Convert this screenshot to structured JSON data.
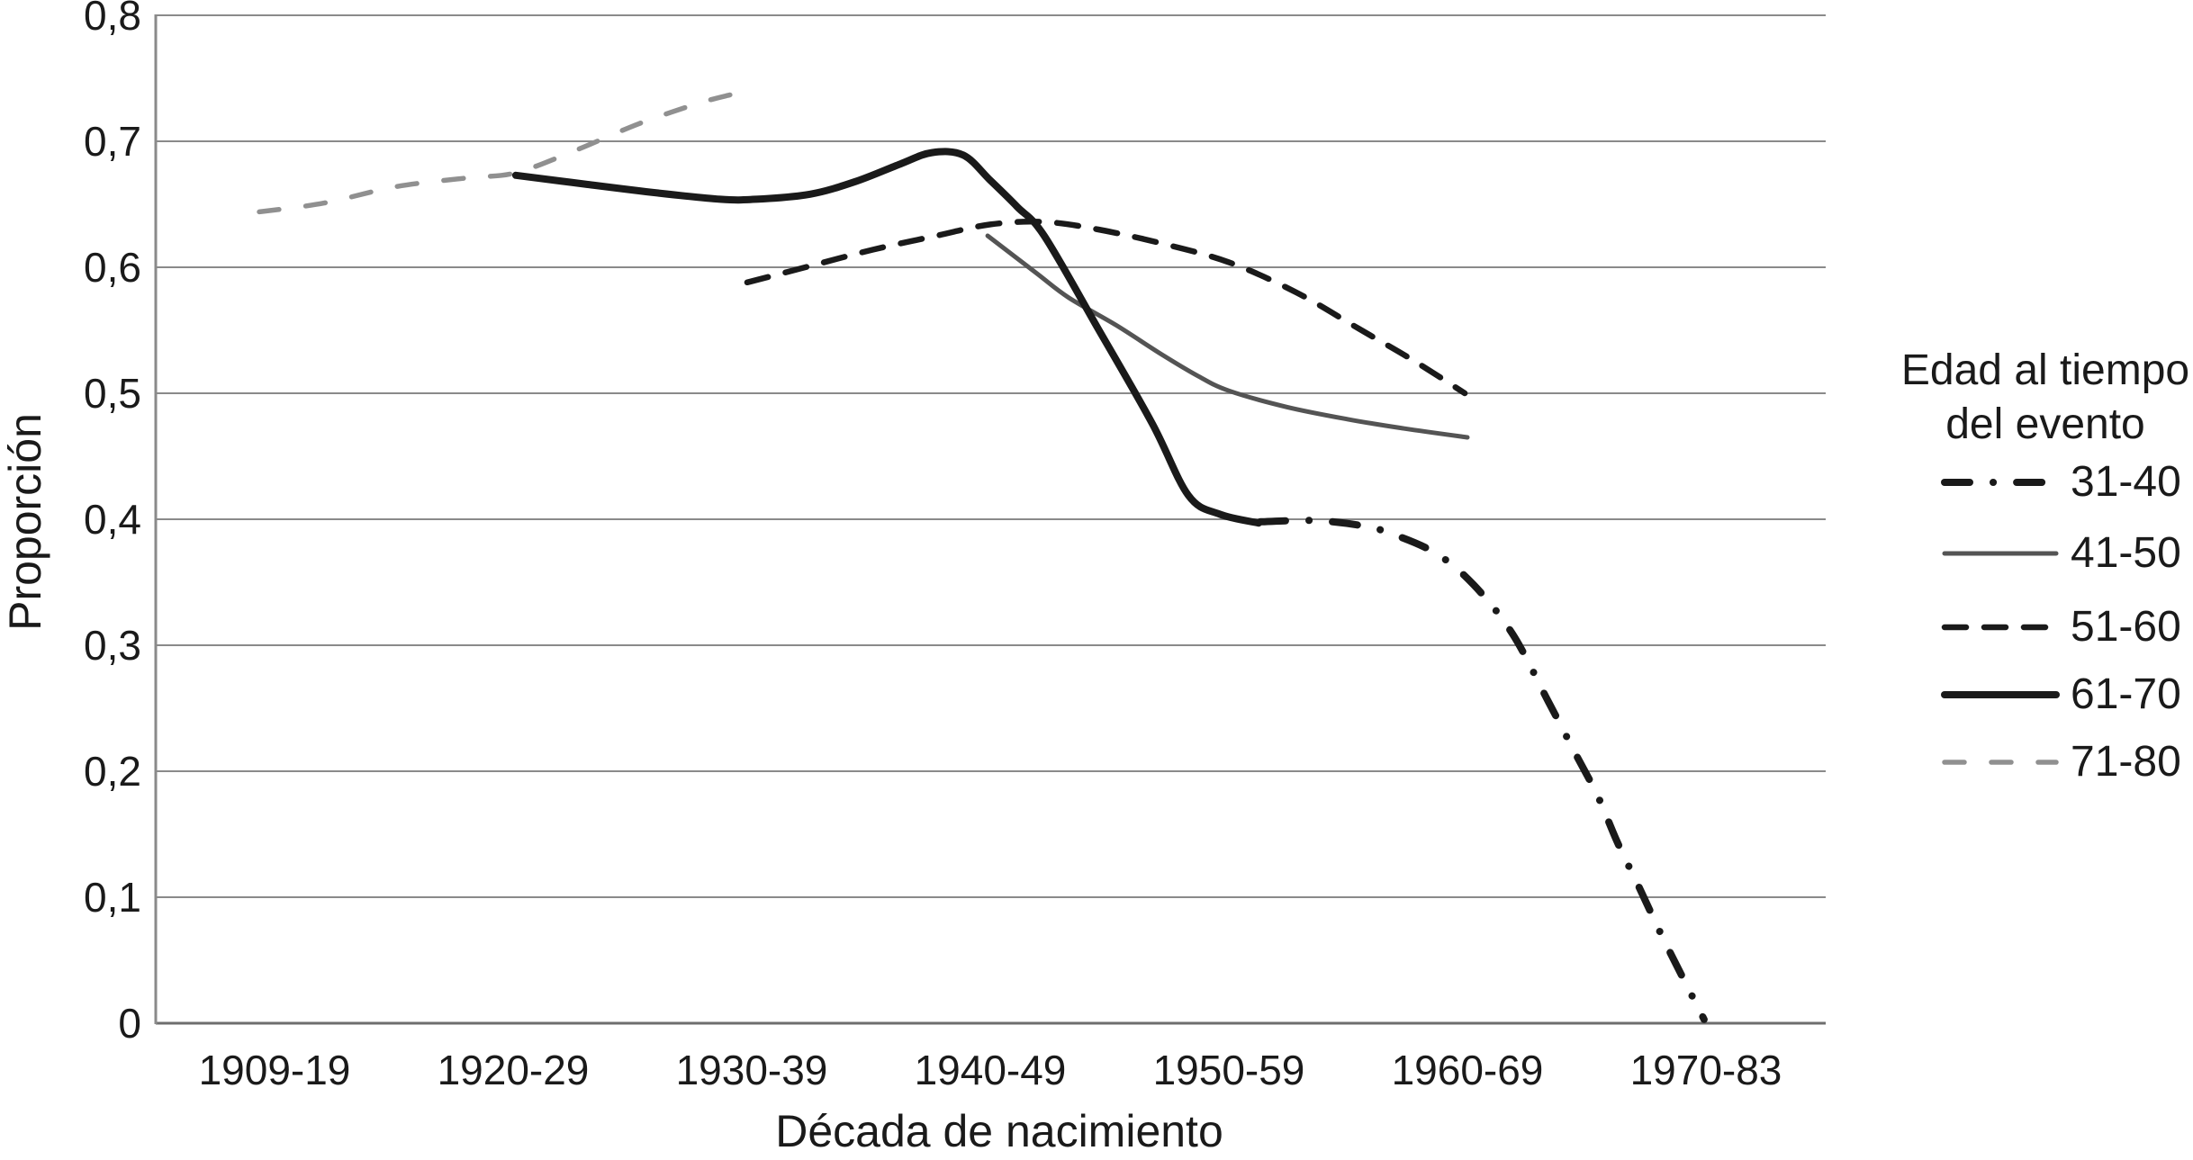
{
  "accent_colors": {
    "black_series": "#1a1a1a",
    "dark_gray_series": "#545454",
    "light_gray_series": "#909090",
    "gridline": "#8a8a8a",
    "baseline": "#6e6e6e",
    "text": "#1a1a1a",
    "background": "#ffffff"
  },
  "y_axis": {
    "title": "Proporción",
    "tick_labels_top_to_bottom": [
      "0,8",
      "0,7",
      "0,6",
      "0,5",
      "0,4",
      "0,3",
      "0,2",
      "0,1",
      "0"
    ],
    "tick_values_top_to_bottom": [
      0.8,
      0.7,
      0.6,
      0.5,
      0.4,
      0.3,
      0.2,
      0.1,
      0
    ]
  },
  "x_axis": {
    "title": "Década de nacimiento",
    "categories": [
      "1909-19",
      "1920-29",
      "1930-39",
      "1940-49",
      "1950-59",
      "1960-69",
      "1970-83"
    ]
  },
  "legend": {
    "title_lines": [
      "Edad al tiempo",
      "del evento"
    ],
    "items": [
      {
        "label": "31-40",
        "series": "31-40"
      },
      {
        "label": "41-50",
        "series": "41-50"
      },
      {
        "label": "51-60",
        "series": "51-60"
      },
      {
        "label": "61-70",
        "series": "61-70"
      },
      {
        "label": "71-80",
        "series": "71-80"
      }
    ]
  },
  "chart_data": {
    "type": "line",
    "title": "",
    "xlabel": "Década de nacimiento",
    "ylabel": "Proporción",
    "ylim": [
      0,
      0.8
    ],
    "grid": "horizontal",
    "legend_position": "right",
    "legend_title": "Edad al tiempo del evento",
    "categories": [
      "1909-19",
      "1920-29",
      "1930-39",
      "1940-49",
      "1950-59",
      "1960-69",
      "1970-83"
    ],
    "series": [
      {
        "name": "31-40",
        "values": [
          null,
          null,
          null,
          null,
          0.4,
          0.35,
          0.0
        ]
      },
      {
        "name": "41-50",
        "values": [
          null,
          null,
          null,
          0.63,
          0.5,
          0.46,
          null
        ]
      },
      {
        "name": "51-60",
        "values": [
          null,
          null,
          0.59,
          0.63,
          0.6,
          0.5,
          null
        ]
      },
      {
        "name": "61-70",
        "values": [
          null,
          0.67,
          0.65,
          0.69,
          0.4,
          null,
          null
        ]
      },
      {
        "name": "71-80",
        "values": [
          0.64,
          0.67,
          0.74,
          null,
          null,
          null,
          null
        ]
      }
    ],
    "curves": {
      "31-40": [
        [
          4.132,
          0.398
        ],
        [
          4.358,
          0.399
        ],
        [
          4.555,
          0.395
        ],
        [
          4.675,
          0.389
        ],
        [
          4.868,
          0.373
        ],
        [
          5.026,
          0.348
        ],
        [
          5.189,
          0.309
        ],
        [
          5.34,
          0.255
        ],
        [
          5.453,
          0.214
        ],
        [
          5.547,
          0.18
        ],
        [
          5.63,
          0.143
        ],
        [
          5.717,
          0.109
        ],
        [
          5.811,
          0.071
        ],
        [
          5.906,
          0.035
        ],
        [
          5.992,
          0.003
        ]
      ],
      "41-50": [
        [
          2.989,
          0.625
        ],
        [
          3.189,
          0.596
        ],
        [
          3.328,
          0.576
        ],
        [
          3.528,
          0.554
        ],
        [
          3.717,
          0.531
        ],
        [
          3.868,
          0.514
        ],
        [
          4.0,
          0.502
        ],
        [
          4.245,
          0.489
        ],
        [
          4.509,
          0.479
        ],
        [
          4.736,
          0.472
        ],
        [
          5.0,
          0.465
        ]
      ],
      "51-60": [
        [
          1.981,
          0.588
        ],
        [
          2.245,
          0.601
        ],
        [
          2.509,
          0.614
        ],
        [
          2.774,
          0.625
        ],
        [
          3.0,
          0.634
        ],
        [
          3.226,
          0.636
        ],
        [
          3.453,
          0.63
        ],
        [
          3.717,
          0.619
        ],
        [
          4.0,
          0.604
        ],
        [
          4.283,
          0.58
        ],
        [
          4.547,
          0.551
        ],
        [
          4.774,
          0.526
        ],
        [
          4.989,
          0.5
        ]
      ],
      "61-70": [
        [
          1.011,
          0.673
        ],
        [
          1.302,
          0.666
        ],
        [
          1.604,
          0.659
        ],
        [
          1.868,
          0.654
        ],
        [
          2.019,
          0.654
        ],
        [
          2.245,
          0.658
        ],
        [
          2.434,
          0.668
        ],
        [
          2.623,
          0.682
        ],
        [
          2.755,
          0.691
        ],
        [
          2.887,
          0.689
        ],
        [
          3.0,
          0.669
        ],
        [
          3.113,
          0.648
        ],
        [
          3.226,
          0.625
        ],
        [
          3.453,
          0.551
        ],
        [
          3.679,
          0.476
        ],
        [
          3.83,
          0.419
        ],
        [
          3.962,
          0.404
        ],
        [
          4.125,
          0.397
        ]
      ],
      "71-80": [
        [
          -0.064,
          0.644
        ],
        [
          0.208,
          0.651
        ],
        [
          0.509,
          0.664
        ],
        [
          0.811,
          0.671
        ],
        [
          1.011,
          0.675
        ],
        [
          1.264,
          0.693
        ],
        [
          1.528,
          0.714
        ],
        [
          1.774,
          0.73
        ],
        [
          1.913,
          0.737
        ]
      ]
    },
    "styles": {
      "31-40": {
        "color": "#1a1a1a",
        "width": 8,
        "dash": "28 26 0.1 26",
        "kind": "dash-dot"
      },
      "41-50": {
        "color": "#545454",
        "width": 5,
        "dash": "",
        "kind": "solid"
      },
      "51-60": {
        "color": "#1a1a1a",
        "width": 6.5,
        "dash": "24 20",
        "kind": "dashed"
      },
      "61-70": {
        "color": "#1a1a1a",
        "width": 8,
        "dash": "",
        "kind": "solid"
      },
      "71-80": {
        "color": "#909090",
        "width": 5.5,
        "dash": "22 30",
        "kind": "dashed"
      }
    }
  }
}
